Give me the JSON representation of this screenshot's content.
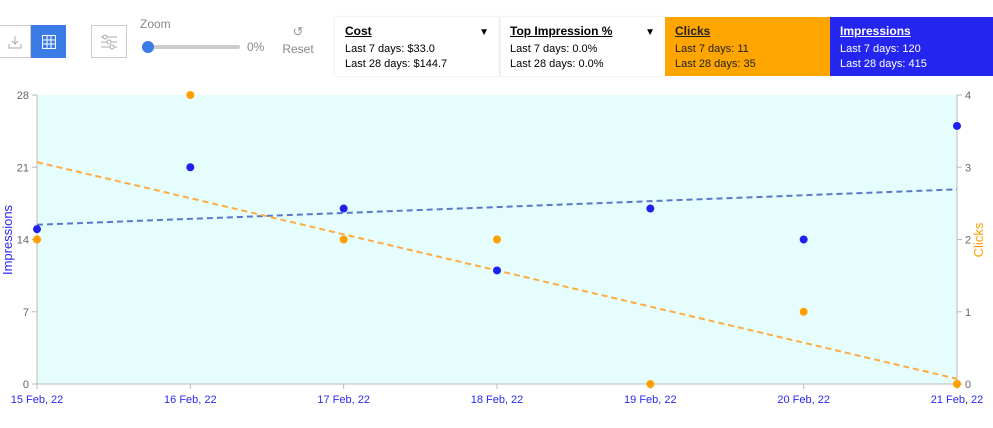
{
  "toolbar": {
    "zoom_label": "Zoom",
    "zoom_value": "0%",
    "zoom_fraction": 0,
    "reset_label": "Reset"
  },
  "cards": [
    {
      "title": "Cost",
      "l7": "Last 7 days: $33.0",
      "l28": "Last 28 days: $144.7",
      "arrow": "▼"
    },
    {
      "title": "Top Impression %",
      "l7": "Last 7 days: 0.0%",
      "l28": "Last 28 days: 0.0%",
      "arrow": "▼"
    },
    {
      "title": "Clicks",
      "l7": "Last 7 days: 11",
      "l28": "Last 28 days: 35",
      "color": "#ffa500"
    },
    {
      "title": "Impressions",
      "l7": "Last 7 days: 120",
      "l28": "Last 28 days: 415",
      "color": "#2525f0"
    }
  ],
  "chart_data": {
    "type": "scatter",
    "categories": [
      "15 Feb, 22",
      "16 Feb, 22",
      "17 Feb, 22",
      "18 Feb, 22",
      "19 Feb, 22",
      "20 Feb, 22",
      "21 Feb, 22"
    ],
    "series": [
      {
        "name": "Impressions",
        "axis": "left",
        "color": "#2020ee",
        "trend_color": "#5a78c8",
        "values": [
          15,
          21,
          17,
          11,
          17,
          14,
          25
        ]
      },
      {
        "name": "Clicks",
        "axis": "right",
        "color": "#ffa000",
        "trend_color": "#ffab40",
        "values": [
          2,
          4,
          2,
          2,
          0,
          1,
          0
        ]
      }
    ],
    "ylabel_left": "Impressions",
    "ylabel_right": "Clicks",
    "yticks_left": [
      "0",
      "7",
      "14",
      "21",
      "28"
    ],
    "ylim_left": [
      0,
      28
    ],
    "yticks_right": [
      "0",
      "1",
      "2",
      "3",
      "4"
    ],
    "ylim_right": [
      0,
      4
    ],
    "trendlines": true
  }
}
